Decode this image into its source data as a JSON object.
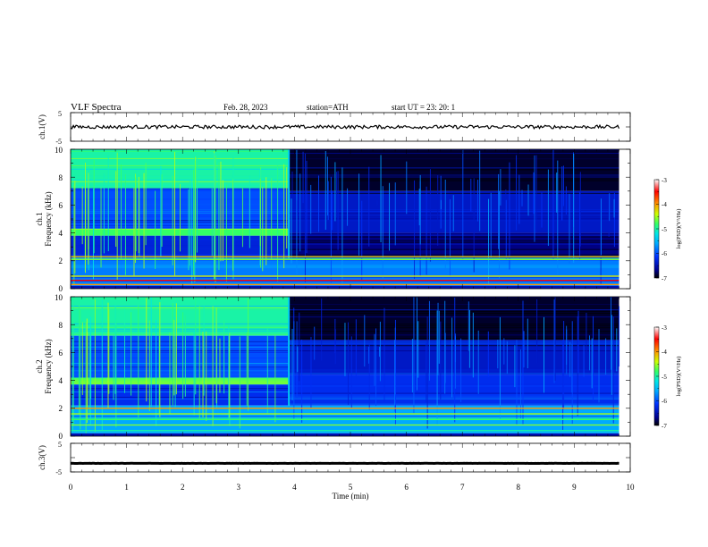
{
  "header": {
    "title": "VLF  Spectra",
    "date": "Feb. 28, 2023",
    "station": "station=ATH",
    "start_ut": "start  UT  =   23: 20: 1"
  },
  "x_axis": {
    "label": "Time  (min)",
    "range": [
      0,
      10
    ],
    "tick_labels": [
      "0",
      "1",
      "2",
      "3",
      "4",
      "5",
      "6",
      "7",
      "8",
      "9",
      "10"
    ]
  },
  "colorbar": {
    "label": "log(PSD)(V²/Hz)",
    "range": [
      -7,
      -3
    ],
    "tick_labels": [
      "-7",
      "-6",
      "-5",
      "-4",
      "-3"
    ]
  },
  "chart_data": [
    {
      "type": "line",
      "panel": "ch.1 voltage",
      "ylabel": "ch.1(V)",
      "ylim": [
        -5,
        5
      ],
      "ytick_labels": [
        "-5",
        "5"
      ],
      "x_range": [
        0,
        9.8
      ],
      "approx_level": 0.0,
      "description_values": {
        "mean_V": 0.0,
        "fluctuation_V": 0.8
      }
    },
    {
      "type": "heatmap",
      "panel": "ch.1 spectrogram",
      "ylabel_channel": "ch.1",
      "ylabel": "Frequency  (kHz)",
      "ylim": [
        0,
        10
      ],
      "ytick_labels": [
        "0",
        "2",
        "4",
        "6",
        "8",
        "10"
      ],
      "x_range": [
        0,
        9.8
      ],
      "transition_time_min": 3.9,
      "segments": [
        {
          "t_start": 0,
          "t_end": 3.9,
          "f_min": 7.2,
          "f_max": 10,
          "log_psd": -5.0
        },
        {
          "t_start": 0,
          "t_end": 3.9,
          "f_min": 4.3,
          "f_max": 7.2,
          "log_psd": -6.0
        },
        {
          "t_start": 0,
          "t_end": 3.9,
          "f_min": 3.8,
          "f_max": 4.3,
          "log_psd": -4.8
        },
        {
          "t_start": 0,
          "t_end": 3.9,
          "f_min": 2.2,
          "f_max": 3.8,
          "log_psd": -6.3
        },
        {
          "t_start": 3.9,
          "t_end": 9.8,
          "f_min": 7.0,
          "f_max": 10,
          "log_psd": -6.9
        },
        {
          "t_start": 3.9,
          "t_end": 9.8,
          "f_min": 4.0,
          "f_max": 7.0,
          "log_psd": -6.4
        },
        {
          "t_start": 3.9,
          "t_end": 9.8,
          "f_min": 2.2,
          "f_max": 4.0,
          "log_psd": -6.7
        },
        {
          "t_start": 0,
          "t_end": 9.8,
          "f_min": 0.2,
          "f_max": 2.2,
          "log_psd": -5.8
        }
      ],
      "lines": [
        {
          "f": 2.3,
          "log_psd": -4.2
        },
        {
          "f": 2.1,
          "log_psd": -4.6
        },
        {
          "f": 0.9,
          "log_psd": -4.3
        },
        {
          "f": 0.6,
          "log_psd": -3.5
        },
        {
          "f": 0.3,
          "log_psd": -4.0
        }
      ]
    },
    {
      "type": "heatmap",
      "panel": "ch.2 spectrogram",
      "ylabel_channel": "ch.2",
      "ylabel": "Frequency  (kHz)",
      "ylim": [
        0,
        10
      ],
      "ytick_labels": [
        "0",
        "2",
        "4",
        "6",
        "8",
        "10"
      ],
      "x_range": [
        0,
        9.8
      ],
      "transition_time_min": 3.9,
      "segments": [
        {
          "t_start": 0,
          "t_end": 3.9,
          "f_min": 7.2,
          "f_max": 10,
          "log_psd": -5.0
        },
        {
          "t_start": 0,
          "t_end": 3.9,
          "f_min": 4.2,
          "f_max": 7.2,
          "log_psd": -6.0
        },
        {
          "t_start": 0,
          "t_end": 3.9,
          "f_min": 3.7,
          "f_max": 4.2,
          "log_psd": -4.7
        },
        {
          "t_start": 0,
          "t_end": 3.9,
          "f_min": 2.2,
          "f_max": 3.7,
          "log_psd": -6.2
        },
        {
          "t_start": 3.9,
          "t_end": 9.8,
          "f_min": 6.9,
          "f_max": 10,
          "log_psd": -6.9
        },
        {
          "t_start": 3.9,
          "t_end": 9.8,
          "f_min": 4.4,
          "f_max": 6.9,
          "log_psd": -6.4
        },
        {
          "t_start": 3.9,
          "t_end": 9.8,
          "f_min": 2.2,
          "f_max": 4.4,
          "log_psd": -6.2
        },
        {
          "t_start": 0,
          "t_end": 9.8,
          "f_min": 0.2,
          "f_max": 2.2,
          "log_psd": -5.6
        }
      ],
      "lines": [
        {
          "f": 2.0,
          "log_psd": -4.0
        },
        {
          "f": 1.6,
          "log_psd": -4.5
        },
        {
          "f": 1.2,
          "log_psd": -4.8
        },
        {
          "f": 0.8,
          "log_psd": -4.6
        },
        {
          "f": 0.4,
          "log_psd": -5.0
        }
      ]
    },
    {
      "type": "line",
      "panel": "ch.3 voltage",
      "ylabel": "ch.3(V)",
      "ylim": [
        -5,
        5
      ],
      "ytick_labels": [
        "-5",
        "5"
      ],
      "x_range": [
        0,
        9.8
      ],
      "approx_level": -2.0
    }
  ]
}
